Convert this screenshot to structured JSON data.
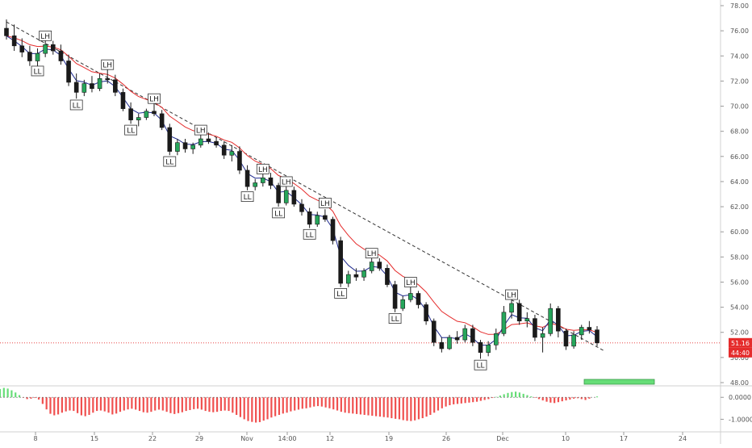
{
  "chart_data": {
    "type": "candlestick",
    "main": {
      "ylim": [
        48.0,
        78.0
      ],
      "y_ticks": [
        "48.00",
        "50.00",
        "52.00",
        "54.00",
        "56.00",
        "58.00",
        "60.00",
        "62.00",
        "64.00",
        "66.00",
        "68.00",
        "70.00",
        "72.00",
        "74.00",
        "76.00",
        "78.00"
      ],
      "current_price": "51.16",
      "countdown": "44:40",
      "price_line_value": 51.16,
      "grid": false,
      "x_ticks": [
        "8",
        "15",
        "22",
        "29",
        "Nov",
        "14:00",
        "12",
        "19",
        "26",
        "Dec",
        "10",
        "17",
        "24"
      ],
      "candles": [
        [
          76.2,
          76.9,
          75.3,
          75.6
        ],
        [
          75.6,
          76.5,
          74.4,
          74.8
        ],
        [
          74.8,
          75.4,
          73.9,
          74.3
        ],
        [
          74.3,
          74.8,
          73.2,
          73.6
        ],
        [
          73.6,
          74.6,
          73.1,
          74.2
        ],
        [
          74.2,
          75.3,
          73.9,
          74.9
        ],
        [
          74.9,
          75.2,
          74.1,
          74.4
        ],
        [
          74.4,
          74.9,
          73.3,
          73.6
        ],
        [
          73.6,
          74.1,
          71.6,
          71.9
        ],
        [
          71.9,
          72.6,
          70.6,
          71.1
        ],
        [
          71.1,
          72.1,
          70.8,
          71.8
        ],
        [
          71.8,
          72.4,
          71.1,
          71.4
        ],
        [
          71.4,
          72.6,
          71.2,
          72.2
        ],
        [
          72.2,
          72.9,
          71.8,
          72.1
        ],
        [
          72.1,
          72.5,
          70.8,
          71.1
        ],
        [
          71.1,
          71.4,
          69.6,
          69.8
        ],
        [
          69.8,
          70.3,
          68.6,
          68.9
        ],
        [
          68.9,
          69.4,
          68.4,
          69.1
        ],
        [
          69.1,
          69.8,
          68.9,
          69.6
        ],
        [
          69.6,
          70.2,
          69.2,
          69.4
        ],
        [
          69.4,
          69.7,
          68.1,
          68.3
        ],
        [
          68.3,
          68.6,
          66.1,
          66.4
        ],
        [
          66.4,
          67.4,
          66.1,
          67.1
        ],
        [
          67.1,
          67.4,
          66.3,
          66.6
        ],
        [
          66.6,
          67.1,
          66.2,
          66.9
        ],
        [
          66.9,
          67.7,
          66.7,
          67.4
        ],
        [
          67.4,
          67.9,
          67.0,
          67.2
        ],
        [
          67.2,
          67.5,
          66.7,
          66.9
        ],
        [
          66.9,
          67.2,
          65.8,
          66.1
        ],
        [
          66.1,
          66.9,
          65.6,
          66.4
        ],
        [
          66.4,
          66.8,
          64.6,
          64.9
        ],
        [
          64.9,
          65.3,
          63.3,
          63.6
        ],
        [
          63.6,
          64.2,
          63.3,
          63.9
        ],
        [
          63.9,
          64.6,
          63.6,
          64.3
        ],
        [
          64.3,
          64.7,
          63.4,
          63.7
        ],
        [
          63.7,
          63.9,
          62.0,
          62.3
        ],
        [
          62.3,
          63.6,
          62.1,
          63.3
        ],
        [
          63.3,
          63.6,
          62.0,
          62.2
        ],
        [
          62.2,
          62.6,
          61.3,
          61.6
        ],
        [
          61.6,
          61.9,
          60.3,
          60.6
        ],
        [
          60.6,
          61.6,
          60.4,
          61.3
        ],
        [
          61.3,
          61.8,
          60.8,
          61.0
        ],
        [
          61.0,
          61.2,
          59.0,
          59.3
        ],
        [
          59.3,
          59.6,
          55.6,
          55.9
        ],
        [
          55.9,
          56.9,
          55.6,
          56.6
        ],
        [
          56.6,
          57.1,
          56.1,
          56.4
        ],
        [
          56.4,
          57.1,
          56.1,
          56.9
        ],
        [
          56.9,
          57.9,
          56.7,
          57.6
        ],
        [
          57.6,
          57.9,
          56.9,
          57.1
        ],
        [
          57.1,
          57.4,
          55.6,
          55.8
        ],
        [
          55.8,
          56.1,
          53.6,
          53.9
        ],
        [
          53.9,
          54.9,
          53.7,
          54.6
        ],
        [
          54.6,
          55.6,
          54.4,
          55.1
        ],
        [
          55.1,
          55.3,
          53.9,
          54.2
        ],
        [
          54.2,
          54.4,
          52.6,
          52.9
        ],
        [
          52.9,
          53.1,
          50.9,
          51.2
        ],
        [
          51.2,
          51.6,
          50.4,
          50.7
        ],
        [
          50.7,
          51.8,
          50.6,
          51.6
        ],
        [
          51.6,
          52.1,
          51.1,
          51.4
        ],
        [
          51.4,
          52.6,
          51.2,
          52.3
        ],
        [
          52.3,
          52.6,
          50.9,
          51.2
        ],
        [
          51.2,
          51.4,
          49.9,
          50.4
        ],
        [
          50.4,
          51.3,
          50.1,
          51.0
        ],
        [
          51.0,
          52.3,
          50.6,
          51.9
        ],
        [
          51.9,
          54.1,
          51.7,
          53.6
        ],
        [
          53.6,
          54.6,
          53.1,
          54.3
        ],
        [
          54.3,
          54.6,
          52.6,
          52.9
        ],
        [
          52.9,
          53.6,
          52.4,
          53.1
        ],
        [
          53.1,
          53.4,
          51.3,
          51.6
        ],
        [
          51.6,
          52.4,
          50.4,
          51.9
        ],
        [
          51.9,
          54.3,
          51.7,
          53.9
        ],
        [
          53.9,
          54.1,
          51.6,
          52.1
        ],
        [
          52.1,
          52.3,
          50.6,
          50.9
        ],
        [
          50.9,
          52.1,
          50.7,
          51.8
        ],
        [
          51.8,
          52.6,
          51.4,
          52.4
        ],
        [
          52.4,
          52.9,
          51.9,
          52.2
        ],
        [
          52.2,
          52.5,
          50.9,
          51.16
        ]
      ],
      "ema_fast_color": "#1f2b8f",
      "ema_slow_color": "#e52c2c",
      "up_color": "#26a65b",
      "down_color": "#1a1a1a",
      "trendline": {
        "from": [
          0,
          76.7
        ],
        "to": [
          77,
          50.5
        ],
        "style": "dashed"
      },
      "annotations": [
        {
          "text": "LL",
          "index": 4,
          "price": 72.8,
          "placement": "below"
        },
        {
          "text": "LH",
          "index": 5,
          "price": 75.6,
          "placement": "above"
        },
        {
          "text": "LL",
          "index": 9,
          "price": 70.1,
          "placement": "below"
        },
        {
          "text": "LH",
          "index": 13,
          "price": 73.3,
          "placement": "above"
        },
        {
          "text": "LL",
          "index": 16,
          "price": 68.1,
          "placement": "below"
        },
        {
          "text": "LH",
          "index": 19,
          "price": 70.6,
          "placement": "above"
        },
        {
          "text": "LL",
          "index": 21,
          "price": 65.6,
          "placement": "below"
        },
        {
          "text": "LH",
          "index": 25,
          "price": 68.1,
          "placement": "above"
        },
        {
          "text": "LH",
          "index": 33,
          "price": 65.0,
          "placement": "above"
        },
        {
          "text": "LL",
          "index": 31,
          "price": 62.8,
          "placement": "below"
        },
        {
          "text": "LH",
          "index": 36,
          "price": 64.0,
          "placement": "above"
        },
        {
          "text": "LL",
          "index": 35,
          "price": 61.5,
          "placement": "below"
        },
        {
          "text": "LH",
          "index": 41,
          "price": 62.3,
          "placement": "above"
        },
        {
          "text": "LL",
          "index": 39,
          "price": 59.8,
          "placement": "below"
        },
        {
          "text": "LL",
          "index": 43,
          "price": 55.1,
          "placement": "below"
        },
        {
          "text": "LH",
          "index": 47,
          "price": 58.3,
          "placement": "above"
        },
        {
          "text": "LH",
          "index": 52,
          "price": 56.0,
          "placement": "above"
        },
        {
          "text": "LL",
          "index": 50,
          "price": 53.1,
          "placement": "below"
        },
        {
          "text": "LL",
          "index": 61,
          "price": 49.4,
          "placement": "below"
        },
        {
          "text": "LH",
          "index": 65,
          "price": 55.0,
          "placement": "above"
        }
      ],
      "target_box": {
        "from_index": 91,
        "to_index": 102,
        "price_from": 48.0,
        "price_to": 48.35,
        "color": "#66dd77"
      }
    },
    "oscillator": {
      "ylim": [
        -1.5,
        0.45
      ],
      "y_ticks": [
        {
          "value": 0.0,
          "label": "0.0000"
        },
        {
          "value": -1.0,
          "label": "-1.0000"
        }
      ],
      "positive_color": "#66dd77",
      "negative_color": "#f0504f",
      "values": [
        0.38,
        0.43,
        0.4,
        0.32,
        0.22,
        0.1,
        -0.02,
        -0.08,
        -0.06,
        -0.03,
        -0.1,
        -0.3,
        -0.55,
        -0.75,
        -0.82,
        -0.78,
        -0.7,
        -0.64,
        -0.6,
        -0.62,
        -0.72,
        -0.82,
        -0.86,
        -0.8,
        -0.7,
        -0.62,
        -0.6,
        -0.64,
        -0.7,
        -0.78,
        -0.74,
        -0.66,
        -0.6,
        -0.55,
        -0.52,
        -0.56,
        -0.62,
        -0.68,
        -0.7,
        -0.66,
        -0.6,
        -0.56,
        -0.6,
        -0.66,
        -0.72,
        -0.76,
        -0.72,
        -0.68,
        -0.62,
        -0.58,
        -0.54,
        -0.52,
        -0.56,
        -0.62,
        -0.66,
        -0.68,
        -0.66,
        -0.62,
        -0.6,
        -0.62,
        -0.7,
        -0.8,
        -0.9,
        -1.0,
        -1.08,
        -1.12,
        -1.15,
        -1.13,
        -1.06,
        -1.0,
        -0.92,
        -0.86,
        -0.8,
        -0.74,
        -0.7,
        -0.64,
        -0.6,
        -0.56,
        -0.52,
        -0.5,
        -0.46,
        -0.42,
        -0.4,
        -0.42,
        -0.46,
        -0.5,
        -0.55,
        -0.6,
        -0.66,
        -0.7,
        -0.72,
        -0.74,
        -0.76,
        -0.78,
        -0.8,
        -0.82,
        -0.84,
        -0.86,
        -0.88,
        -0.9,
        -0.92,
        -0.95,
        -0.98,
        -1.0,
        -1.04,
        -1.07,
        -1.08,
        -1.05,
        -1.0,
        -0.95,
        -0.88,
        -0.8,
        -0.7,
        -0.6,
        -0.5,
        -0.42,
        -0.36,
        -0.32,
        -0.3,
        -0.28,
        -0.26,
        -0.24,
        -0.22,
        -0.2,
        -0.16,
        -0.12,
        -0.08,
        -0.03,
        0.02,
        0.08,
        0.14,
        0.2,
        0.24,
        0.26,
        0.22,
        0.16,
        0.1,
        0.04,
        -0.02,
        -0.08,
        -0.14,
        -0.2,
        -0.24,
        -0.26,
        -0.22,
        -0.18,
        -0.14,
        -0.1,
        -0.06,
        -0.04,
        -0.08,
        -0.12,
        -0.06,
        0.0,
        0.04
      ]
    }
  }
}
